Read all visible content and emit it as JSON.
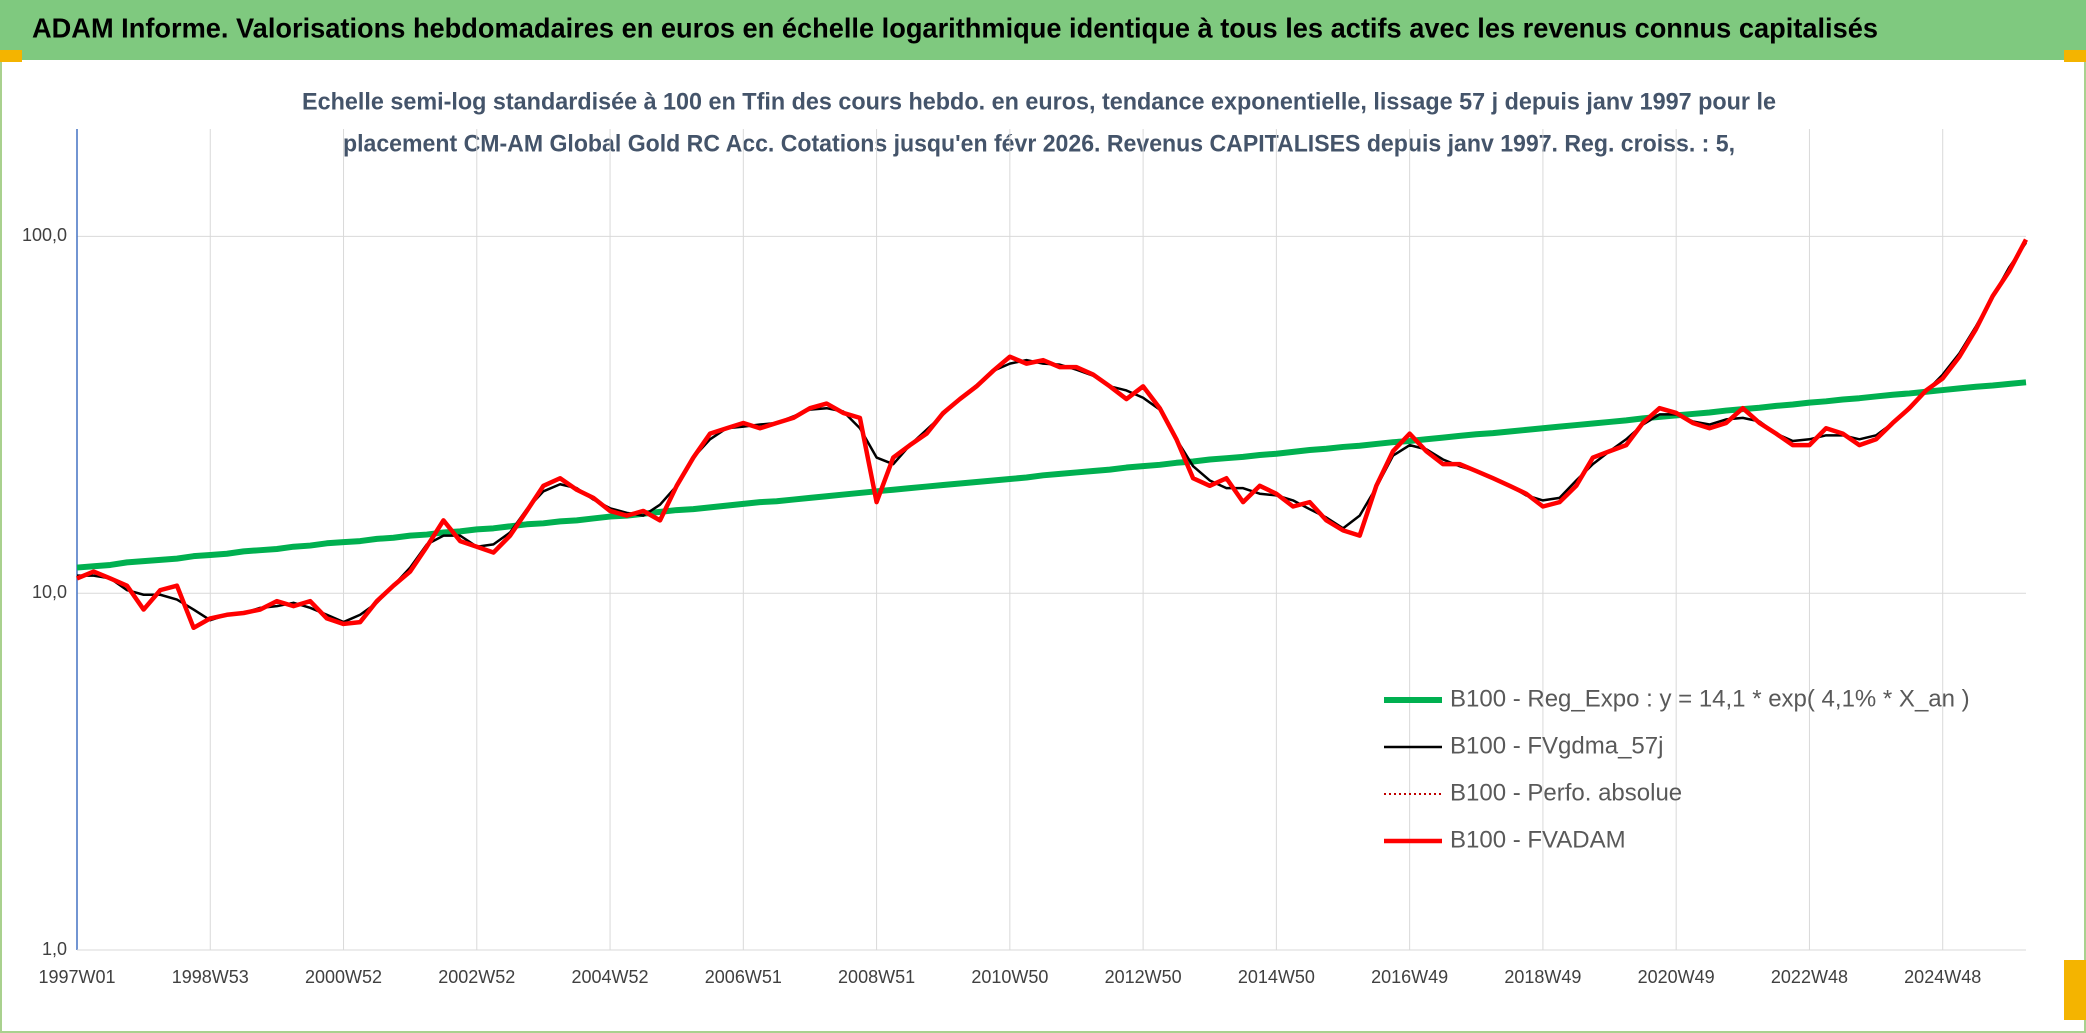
{
  "chart_data": {
    "type": "line",
    "title": "ADAM Informe. Valorisations hebdomadaires en euros en échelle logarithmique identique à tous les actifs avec les revenus connus capitalisés",
    "subtitle": [
      "Echelle semi-log standardisée à 100 en Tfin des cours hebdo. en euros, tendance exponentielle, lissage 57 j depuis janv 1997 pour le",
      "placement CM-AM Global Gold RC Acc. Cotations jusqu'en févr 2026. Revenus CAPITALISES depuis janv 1997. Reg. croiss. : 5,"
    ],
    "categories": [
      "1997W01",
      null,
      null,
      null,
      null,
      null,
      null,
      null,
      "1998W53",
      null,
      null,
      null,
      null,
      null,
      null,
      null,
      "2000W52",
      null,
      null,
      null,
      null,
      null,
      null,
      null,
      "2002W52",
      null,
      null,
      null,
      null,
      null,
      null,
      null,
      "2004W52",
      null,
      null,
      null,
      null,
      null,
      null,
      null,
      "2006W51",
      null,
      null,
      null,
      null,
      null,
      null,
      null,
      "2008W51",
      null,
      null,
      null,
      null,
      null,
      null,
      null,
      "2010W50",
      null,
      null,
      null,
      null,
      null,
      null,
      null,
      "2012W50",
      null,
      null,
      null,
      null,
      null,
      null,
      null,
      "2014W50",
      null,
      null,
      null,
      null,
      null,
      null,
      null,
      "2016W49",
      null,
      null,
      null,
      null,
      null,
      null,
      null,
      "2018W49",
      null,
      null,
      null,
      null,
      null,
      null,
      null,
      "2020W49",
      null,
      null,
      null,
      null,
      null,
      null,
      null,
      "2022W48",
      null,
      null,
      null,
      null,
      null,
      null,
      null,
      "2024W48",
      null,
      null,
      null,
      null,
      null
    ],
    "series": [
      {
        "name": "B100 - Reg_Expo : y = 14,1 * exp( 4,1% *  X_an )",
        "color": "#00b050",
        "width": 6,
        "dash": "solid",
        "values": [
          11.8,
          11.9,
          12.0,
          12.2,
          12.3,
          12.4,
          12.5,
          12.7,
          12.8,
          12.9,
          13.1,
          13.2,
          13.3,
          13.5,
          13.6,
          13.8,
          13.9,
          14.0,
          14.2,
          14.3,
          14.5,
          14.6,
          14.8,
          14.9,
          15.1,
          15.2,
          15.4,
          15.6,
          15.7,
          15.9,
          16.0,
          16.2,
          16.4,
          16.5,
          16.7,
          16.9,
          17.1,
          17.2,
          17.4,
          17.6,
          17.8,
          18.0,
          18.1,
          18.3,
          18.5,
          18.7,
          18.9,
          19.1,
          19.3,
          19.5,
          19.7,
          19.9,
          20.1,
          20.3,
          20.5,
          20.7,
          20.9,
          21.1,
          21.4,
          21.6,
          21.8,
          22.0,
          22.2,
          22.5,
          22.7,
          22.9,
          23.2,
          23.4,
          23.7,
          23.9,
          24.1,
          24.4,
          24.6,
          24.9,
          25.2,
          25.4,
          25.7,
          25.9,
          26.2,
          26.5,
          26.7,
          27.0,
          27.3,
          27.6,
          27.9,
          28.1,
          28.4,
          28.7,
          29.0,
          29.3,
          29.6,
          29.9,
          30.2,
          30.5,
          30.9,
          31.2,
          31.5,
          31.8,
          32.1,
          32.5,
          32.8,
          33.1,
          33.5,
          33.8,
          34.2,
          34.5,
          34.9,
          35.2,
          35.6,
          36.0,
          36.3,
          36.7,
          37.1,
          37.5,
          37.9,
          38.2,
          38.6,
          39.0
        ]
      },
      {
        "name": "B100 - FVgdma_57j",
        "color": "#000000",
        "width": 2.5,
        "dash": "solid",
        "values": [
          11.2,
          11.2,
          11,
          10.2,
          9.9,
          9.9,
          9.6,
          9,
          8.4,
          8.7,
          8.8,
          9.1,
          9.2,
          9.4,
          9.1,
          8.7,
          8.3,
          8.7,
          9.4,
          10.5,
          11.8,
          13.7,
          14.5,
          14.5,
          13.5,
          13.7,
          14.8,
          17.2,
          19.3,
          20.2,
          19.7,
          18.3,
          17.3,
          16.8,
          16.5,
          17.7,
          20,
          24,
          27,
          29,
          29.3,
          29.7,
          30,
          31.3,
          32.7,
          33,
          32.3,
          29,
          24,
          23,
          26,
          28.7,
          31.7,
          35,
          38.3,
          42,
          44,
          45,
          44,
          43.7,
          42.3,
          40.7,
          38,
          37,
          35.3,
          32.7,
          27,
          22.7,
          20.7,
          19.7,
          19.7,
          19,
          18.8,
          18.2,
          17.2,
          16.3,
          15.2,
          16.5,
          19.8,
          24.3,
          26,
          25.3,
          23.7,
          22.7,
          22,
          21,
          20,
          18.8,
          18.2,
          18.5,
          20.7,
          23,
          25,
          27,
          29.7,
          31.7,
          31.7,
          30.3,
          29.7,
          30.7,
          31,
          30.3,
          28,
          26.7,
          27,
          27.7,
          27.7,
          27,
          27.7,
          30,
          33.3,
          36.7,
          41,
          47,
          56,
          67.7,
          82,
          96
        ]
      },
      {
        "name": "B100 - Perfo. absolue",
        "color": "#c00000",
        "width": 2,
        "dash": "dotted",
        "values": [
          11,
          11.5,
          11,
          10.5,
          9,
          10.2,
          10.5,
          8,
          8.5,
          8.7,
          8.8,
          9,
          9.5,
          9.2,
          9.5,
          8.5,
          8.2,
          8.3,
          9.5,
          10.5,
          11.5,
          13.5,
          16,
          14,
          13.5,
          13,
          14.5,
          17,
          20,
          21,
          19.5,
          18.5,
          17,
          16.5,
          17,
          16,
          20,
          24,
          28,
          29,
          30,
          29,
          30,
          31,
          33,
          34,
          32,
          31,
          18,
          24,
          26,
          28,
          32,
          35,
          38,
          42,
          46,
          44,
          45,
          43,
          43,
          41,
          38,
          35,
          38,
          33,
          27,
          21,
          20,
          21,
          18,
          20,
          19,
          17.5,
          18,
          16,
          15,
          14.5,
          20,
          25,
          28,
          25,
          23,
          23,
          22,
          21,
          20,
          19,
          17.5,
          18,
          20,
          24,
          25,
          26,
          30,
          33,
          32,
          30,
          29,
          30,
          33,
          30,
          28,
          26,
          26,
          29,
          28,
          26,
          27,
          30,
          33,
          37,
          40,
          46,
          55,
          68,
          80,
          98
        ]
      },
      {
        "name": "B100 - FVADAM",
        "color": "#ff0000",
        "width": 4.5,
        "dash": "solid",
        "values": [
          11,
          11.5,
          11,
          10.5,
          9,
          10.2,
          10.5,
          8,
          8.5,
          8.7,
          8.8,
          9,
          9.5,
          9.2,
          9.5,
          8.5,
          8.2,
          8.3,
          9.5,
          10.5,
          11.5,
          13.5,
          16,
          14,
          13.5,
          13,
          14.5,
          17,
          20,
          21,
          19.5,
          18.5,
          17,
          16.5,
          17,
          16,
          20,
          24,
          28,
          29,
          30,
          29,
          30,
          31,
          33,
          34,
          32,
          31,
          18,
          24,
          26,
          28,
          32,
          35,
          38,
          42,
          46,
          44,
          45,
          43,
          43,
          41,
          38,
          35,
          38,
          33,
          27,
          21,
          20,
          21,
          18,
          20,
          19,
          17.5,
          18,
          16,
          15,
          14.5,
          20,
          25,
          28,
          25,
          23,
          23,
          22,
          21,
          20,
          19,
          17.5,
          18,
          20,
          24,
          25,
          26,
          30,
          33,
          32,
          30,
          29,
          30,
          33,
          30,
          28,
          26,
          26,
          29,
          28,
          26,
          27,
          30,
          33,
          37,
          40,
          46,
          55,
          68,
          80,
          98
        ]
      }
    ],
    "ylim": [
      1,
      200
    ],
    "yticks": [
      {
        "value": 1,
        "label": "1,0"
      },
      {
        "value": 10,
        "label": "10,0"
      },
      {
        "value": 100,
        "label": "100,0"
      }
    ],
    "log_y": true,
    "grid": true,
    "legend": "bottom right"
  }
}
